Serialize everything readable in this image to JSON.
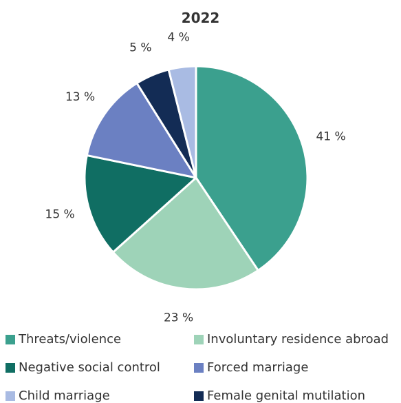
{
  "chart_data": {
    "type": "pie",
    "title": "2022",
    "slices": [
      {
        "label": "Threats/violence",
        "value": 41,
        "display": "41 %",
        "color": "#3ba08e"
      },
      {
        "label": "Involuntary residence abroad",
        "value": 23,
        "display": "23 %",
        "color": "#9ed3b8"
      },
      {
        "label": "Negative social control",
        "value": 15,
        "display": "15 %",
        "color": "#106e63"
      },
      {
        "label": "Forced marriage",
        "value": 13,
        "display": "13 %",
        "color": "#6b80c2"
      },
      {
        "label": "Female genital mutilation",
        "value": 5,
        "display": "5 %",
        "color": "#132c55"
      },
      {
        "label": "Child marriage",
        "value": 4,
        "display": "4 %",
        "color": "#a9bbe3"
      }
    ],
    "legend": {
      "placement": "bottom",
      "order": [
        "Threats/violence",
        "Involuntary residence abroad",
        "Negative social control",
        "Forced marriage",
        "Child marriage",
        "Female genital mutilation"
      ]
    }
  }
}
